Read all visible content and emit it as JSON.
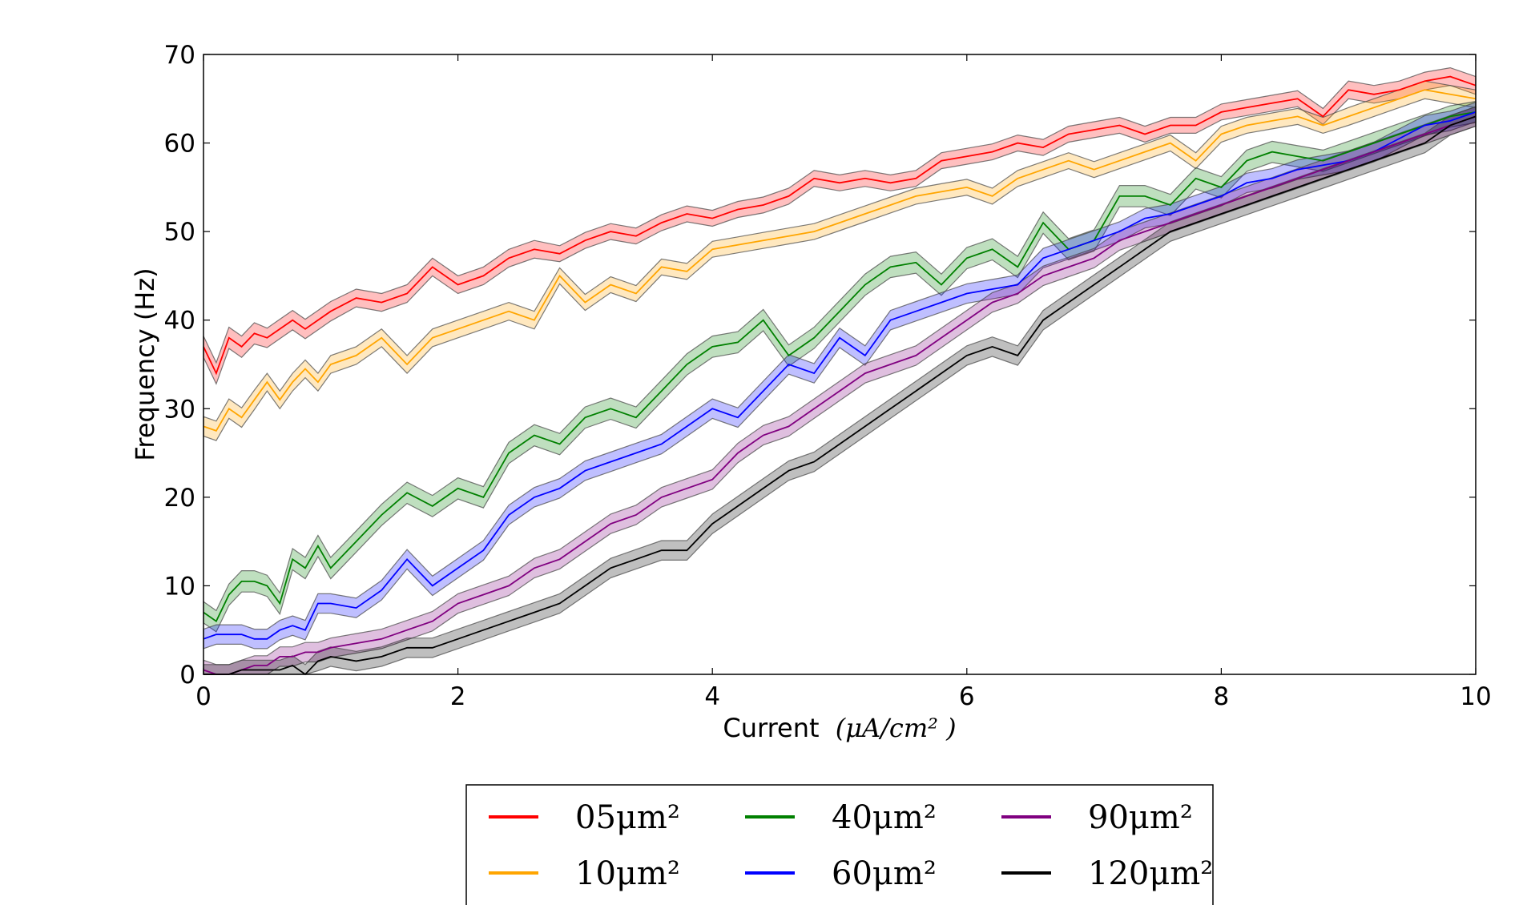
{
  "chart_data": {
    "type": "line",
    "title": "",
    "xlabel": "Current",
    "xlabel_math": "(μA/cm² )",
    "ylabel": "Frequency (Hz)",
    "xlim": [
      0,
      10
    ],
    "ylim": [
      0,
      70
    ],
    "xticks": [
      "0",
      "2",
      "4",
      "6",
      "8",
      "10"
    ],
    "yticks": [
      "0",
      "10",
      "20",
      "30",
      "40",
      "50",
      "60",
      "70"
    ],
    "legend_position": "bottom-center",
    "legend_columns": 3,
    "band_note": "shaded band around each line shows spread of frequency",
    "series": [
      {
        "name": "05μm²",
        "color": "#ff0000",
        "x": [
          0,
          0.1,
          0.2,
          0.3,
          0.4,
          0.5,
          0.6,
          0.7,
          0.8,
          0.9,
          1,
          1.2,
          1.4,
          1.6,
          1.8,
          2,
          2.2,
          2.4,
          2.6,
          2.8,
          3,
          3.2,
          3.4,
          3.6,
          3.8,
          4,
          4.2,
          4.4,
          4.6,
          4.8,
          5,
          5.2,
          5.4,
          5.6,
          5.8,
          6,
          6.2,
          6.4,
          6.6,
          6.8,
          7,
          7.2,
          7.4,
          7.6,
          7.8,
          8,
          8.2,
          8.4,
          8.6,
          8.8,
          9,
          9.2,
          9.4,
          9.6,
          9.8,
          10
        ],
        "y": [
          37,
          34,
          38,
          37,
          38.5,
          38,
          39,
          40,
          39,
          40,
          41,
          42.5,
          42,
          43,
          46,
          44,
          45,
          47,
          48,
          47.5,
          49,
          50,
          49.5,
          51,
          52,
          51.5,
          52.5,
          53,
          54,
          56,
          55.5,
          56,
          55.5,
          56,
          58,
          58.5,
          59,
          60,
          59.5,
          61,
          61.5,
          62,
          61,
          62,
          62,
          63.5,
          64,
          64.5,
          65,
          63,
          66,
          65.5,
          66,
          67,
          67.5,
          66.5
        ],
        "band": [
          1.2,
          1.2,
          1.2,
          1.2,
          1.2,
          1.1,
          1.1,
          1.1,
          1.1,
          1.1,
          1.1,
          1.0,
          1.0,
          1.0,
          1.0,
          1.0,
          1.0,
          1.0,
          1.0,
          0.9,
          0.9,
          0.9,
          0.9,
          0.9,
          0.9,
          0.9,
          0.9,
          0.9,
          0.9,
          0.9,
          0.9,
          0.9,
          0.9,
          0.9,
          0.9,
          0.9,
          0.9,
          0.9,
          0.9,
          0.9,
          0.9,
          0.9,
          0.9,
          0.9,
          0.9,
          0.9,
          0.9,
          0.9,
          0.9,
          0.9,
          1.0,
          1.0,
          1.0,
          1.0,
          1.0,
          1.0
        ]
      },
      {
        "name": "10μm²",
        "color": "#ffa500",
        "x": [
          0,
          0.1,
          0.2,
          0.3,
          0.4,
          0.5,
          0.6,
          0.7,
          0.8,
          0.9,
          1,
          1.2,
          1.4,
          1.6,
          1.8,
          2,
          2.2,
          2.4,
          2.6,
          2.8,
          3,
          3.2,
          3.4,
          3.6,
          3.8,
          4,
          4.2,
          4.4,
          4.6,
          4.8,
          5,
          5.2,
          5.4,
          5.6,
          5.8,
          6,
          6.2,
          6.4,
          6.6,
          6.8,
          7,
          7.2,
          7.4,
          7.6,
          7.8,
          8,
          8.2,
          8.4,
          8.6,
          8.8,
          9,
          9.2,
          9.4,
          9.6,
          9.8,
          10
        ],
        "y": [
          28,
          27.5,
          30,
          29,
          31,
          33,
          31,
          33,
          34.5,
          33,
          35,
          36,
          38,
          35,
          38,
          39,
          40,
          41,
          40,
          45,
          42,
          44,
          43,
          46,
          45.5,
          48,
          48.5,
          49,
          49.5,
          50,
          51,
          52,
          53,
          54,
          54.5,
          55,
          54,
          56,
          57,
          58,
          57,
          58,
          59,
          60,
          58,
          61,
          62,
          62.5,
          63,
          62,
          63,
          64,
          65,
          66,
          65.5,
          65
        ],
        "band": [
          1.1,
          1.1,
          1.1,
          1.1,
          1.1,
          1.0,
          1.0,
          1.0,
          1.0,
          1.0,
          1.0,
          1.0,
          1.0,
          1.0,
          1.0,
          1.0,
          1.0,
          1.0,
          1.0,
          0.9,
          0.9,
          0.9,
          0.9,
          0.9,
          0.9,
          0.9,
          0.9,
          0.9,
          0.9,
          0.9,
          0.9,
          0.9,
          0.9,
          0.9,
          0.9,
          0.9,
          0.9,
          0.9,
          0.9,
          0.9,
          0.9,
          0.9,
          0.9,
          0.9,
          0.9,
          0.9,
          0.9,
          0.9,
          0.9,
          0.9,
          1.0,
          1.0,
          1.0,
          1.0,
          1.0,
          1.0
        ]
      },
      {
        "name": "40μm²",
        "color": "#008000",
        "x": [
          0,
          0.1,
          0.2,
          0.3,
          0.4,
          0.5,
          0.6,
          0.7,
          0.8,
          0.9,
          1,
          1.2,
          1.4,
          1.6,
          1.8,
          2,
          2.2,
          2.4,
          2.6,
          2.8,
          3,
          3.2,
          3.4,
          3.6,
          3.8,
          4,
          4.2,
          4.4,
          4.6,
          4.8,
          5,
          5.2,
          5.4,
          5.6,
          5.8,
          6,
          6.2,
          6.4,
          6.6,
          6.8,
          7,
          7.2,
          7.4,
          7.6,
          7.8,
          8,
          8.2,
          8.4,
          8.6,
          8.8,
          9,
          9.2,
          9.4,
          9.6,
          9.8,
          10
        ],
        "y": [
          7,
          6,
          9,
          10.5,
          10.5,
          10,
          8,
          13,
          12,
          14.5,
          12,
          15,
          18,
          20.5,
          19,
          21,
          20,
          25,
          27,
          26,
          29,
          30,
          29,
          32,
          35,
          37,
          37.5,
          40,
          36,
          38,
          41,
          44,
          46,
          46.5,
          44,
          47,
          48,
          46,
          51,
          48,
          49,
          54,
          54,
          53,
          56,
          55,
          58,
          59,
          58.5,
          58,
          59,
          60,
          61,
          62,
          63,
          63.5
        ],
        "band": [
          1.2,
          1.2,
          1.2,
          1.2,
          1.2,
          1.2,
          1.2,
          1.2,
          1.2,
          1.2,
          1.2,
          1.2,
          1.2,
          1.2,
          1.2,
          1.2,
          1.2,
          1.2,
          1.2,
          1.2,
          1.2,
          1.2,
          1.2,
          1.2,
          1.2,
          1.2,
          1.2,
          1.2,
          1.2,
          1.2,
          1.2,
          1.2,
          1.2,
          1.2,
          1.2,
          1.2,
          1.2,
          1.2,
          1.2,
          1.2,
          1.2,
          1.2,
          1.2,
          1.2,
          1.2,
          1.2,
          1.2,
          1.2,
          1.2,
          1.2,
          1.2,
          1.2,
          1.2,
          1.2,
          1.2,
          1.2
        ]
      },
      {
        "name": "60μm²",
        "color": "#0000ff",
        "x": [
          0,
          0.1,
          0.2,
          0.3,
          0.4,
          0.5,
          0.6,
          0.7,
          0.8,
          0.9,
          1,
          1.2,
          1.4,
          1.6,
          1.8,
          2,
          2.2,
          2.4,
          2.6,
          2.8,
          3,
          3.2,
          3.4,
          3.6,
          3.8,
          4,
          4.2,
          4.4,
          4.6,
          4.8,
          5,
          5.2,
          5.4,
          5.6,
          5.8,
          6,
          6.2,
          6.4,
          6.6,
          6.8,
          7,
          7.2,
          7.4,
          7.6,
          7.8,
          8,
          8.2,
          8.4,
          8.6,
          8.8,
          9,
          9.2,
          9.4,
          9.6,
          9.8,
          10
        ],
        "y": [
          4,
          4.5,
          4.5,
          4.5,
          4,
          4,
          5,
          5.5,
          5,
          8,
          8,
          7.5,
          9.5,
          13,
          10,
          12,
          14,
          18,
          20,
          21,
          23,
          24,
          25,
          26,
          28,
          30,
          29,
          32,
          35,
          34,
          38,
          36,
          40,
          41,
          42,
          43,
          43.5,
          44,
          47,
          48,
          49,
          50,
          51.5,
          52,
          53,
          54,
          55.5,
          56,
          57,
          57.5,
          58,
          59,
          60.5,
          62,
          62.5,
          63.5
        ],
        "band": [
          1.1,
          1.1,
          1.1,
          1.1,
          1.1,
          1.1,
          1.1,
          1.1,
          1.1,
          1.1,
          1.1,
          1.1,
          1.1,
          1.1,
          1.1,
          1.1,
          1.1,
          1.1,
          1.1,
          1.1,
          1.1,
          1.1,
          1.1,
          1.1,
          1.1,
          1.1,
          1.1,
          1.1,
          1.1,
          1.1,
          1.1,
          1.1,
          1.1,
          1.1,
          1.1,
          1.1,
          1.1,
          1.1,
          1.1,
          1.1,
          1.1,
          1.1,
          1.1,
          1.1,
          1.1,
          1.1,
          1.1,
          1.1,
          1.1,
          1.1,
          1.1,
          1.1,
          1.1,
          1.1,
          1.1,
          1.1
        ]
      },
      {
        "name": "90μm²",
        "color": "#800080",
        "x": [
          0,
          0.1,
          0.2,
          0.3,
          0.4,
          0.5,
          0.6,
          0.7,
          0.8,
          0.9,
          1,
          1.2,
          1.4,
          1.6,
          1.8,
          2,
          2.2,
          2.4,
          2.6,
          2.8,
          3,
          3.2,
          3.4,
          3.6,
          3.8,
          4,
          4.2,
          4.4,
          4.6,
          4.8,
          5,
          5.2,
          5.4,
          5.6,
          5.8,
          6,
          6.2,
          6.4,
          6.6,
          6.8,
          7,
          7.2,
          7.4,
          7.6,
          7.8,
          8,
          8.2,
          8.4,
          8.6,
          8.8,
          9,
          9.2,
          9.4,
          9.6,
          9.8,
          10
        ],
        "y": [
          0.5,
          0,
          0,
          0.5,
          1,
          1,
          2,
          2,
          2.5,
          2.5,
          3,
          3.5,
          4,
          5,
          6,
          8,
          9,
          10,
          12,
          13,
          15,
          17,
          18,
          20,
          21,
          22,
          25,
          27,
          28,
          30,
          32,
          34,
          35,
          36,
          38,
          40,
          42,
          43,
          45,
          46,
          47,
          49,
          50,
          51,
          52,
          53,
          54,
          55,
          56,
          57,
          58,
          59,
          60,
          61,
          62,
          63
        ],
        "band": [
          1.1,
          1.1,
          1.1,
          1.1,
          1.1,
          1.1,
          1.1,
          1.1,
          1.1,
          1.1,
          1.1,
          1.1,
          1.1,
          1.1,
          1.1,
          1.1,
          1.1,
          1.1,
          1.1,
          1.1,
          1.1,
          1.1,
          1.1,
          1.1,
          1.1,
          1.1,
          1.1,
          1.1,
          1.1,
          1.1,
          1.1,
          1.1,
          1.1,
          1.1,
          1.1,
          1.1,
          1.1,
          1.1,
          1.1,
          1.1,
          1.1,
          1.1,
          1.1,
          1.1,
          1.1,
          1.1,
          1.1,
          1.1,
          1.1,
          1.1,
          1.1,
          1.1,
          1.1,
          1.1,
          1.1,
          1.1
        ]
      },
      {
        "name": "120μm²",
        "color": "#000000",
        "x": [
          0,
          0.1,
          0.2,
          0.3,
          0.4,
          0.5,
          0.6,
          0.7,
          0.8,
          0.9,
          1,
          1.2,
          1.4,
          1.6,
          1.8,
          2,
          2.2,
          2.4,
          2.6,
          2.8,
          3,
          3.2,
          3.4,
          3.6,
          3.8,
          4,
          4.2,
          4.4,
          4.6,
          4.8,
          5,
          5.2,
          5.4,
          5.6,
          5.8,
          6,
          6.2,
          6.4,
          6.6,
          6.8,
          7,
          7.2,
          7.4,
          7.6,
          7.8,
          8,
          8.2,
          8.4,
          8.6,
          8.8,
          9,
          9.2,
          9.4,
          9.6,
          9.8,
          10
        ],
        "y": [
          0,
          0,
          0,
          0.5,
          0.5,
          0.5,
          0.5,
          1,
          0,
          1.5,
          2,
          1.5,
          2,
          3,
          3,
          4,
          5,
          6,
          7,
          8,
          10,
          12,
          13,
          14,
          14,
          17,
          19,
          21,
          23,
          24,
          26,
          28,
          30,
          32,
          34,
          36,
          37,
          36,
          40,
          42,
          44,
          46,
          48,
          50,
          51,
          52,
          53,
          54,
          55,
          56,
          57,
          58,
          59,
          60,
          62,
          63
        ],
        "band": [
          1.1,
          1.1,
          1.1,
          1.1,
          1.1,
          1.1,
          1.1,
          1.1,
          1.1,
          1.1,
          1.1,
          1.1,
          1.1,
          1.1,
          1.1,
          1.1,
          1.1,
          1.1,
          1.1,
          1.1,
          1.1,
          1.1,
          1.1,
          1.1,
          1.1,
          1.1,
          1.1,
          1.1,
          1.1,
          1.1,
          1.1,
          1.1,
          1.1,
          1.1,
          1.1,
          1.1,
          1.1,
          1.1,
          1.1,
          1.1,
          1.1,
          1.1,
          1.1,
          1.1,
          1.1,
          1.1,
          1.1,
          1.1,
          1.1,
          1.1,
          1.1,
          1.1,
          1.1,
          1.1,
          1.1,
          1.1
        ]
      }
    ]
  }
}
